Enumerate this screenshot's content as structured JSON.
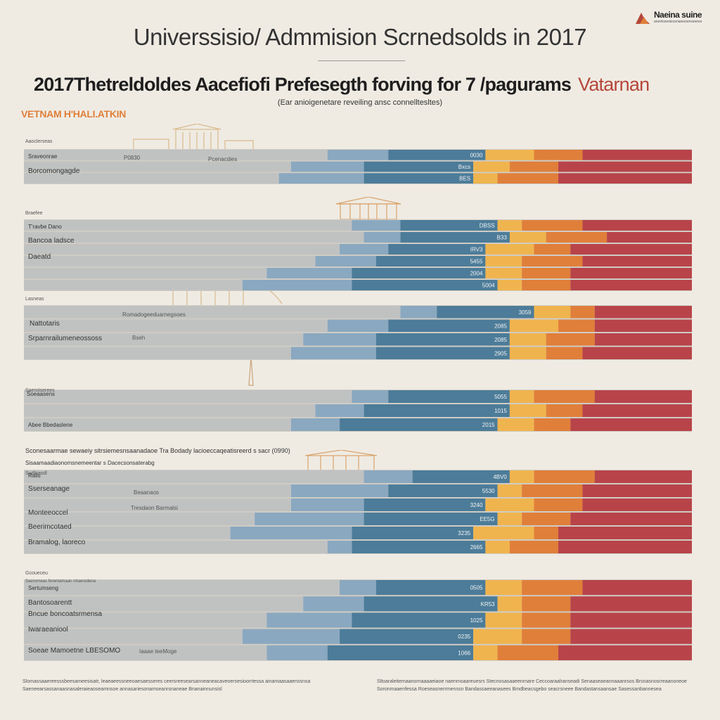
{
  "header": {
    "title": "Universsisio/ Admmision Scrnedsolds in 2017",
    "subtitle": "2017Thetreldoldes Aacefiofi Prefesegth forving for 7 /pagurams",
    "subtitle_accent": "Vatarnan",
    "subnote": "(Ear anioigenetare reveiling ansc connelltesltes)",
    "brand_strip": "VETNAM  H'HALI.ATKIN"
  },
  "logo": {
    "name": "Naeina suine",
    "tagline": "aneelosestessnaneesinsioesre"
  },
  "colors": {
    "page_bg": "#efebe3",
    "light_grey": "#cfccc5",
    "grey": "#b4b9bf",
    "light_blue": "#8aa8c0",
    "blue": "#4c7c99",
    "deep_blue": "#3c6a86",
    "amber": "#f0b44e",
    "orange": "#e07f3a",
    "red": "#b8444a"
  },
  "chart_data": [
    {
      "type": "bar",
      "stacked": true,
      "orientation": "horizontal",
      "title": "Aaoclerseas",
      "segments": [
        "grey",
        "light blue",
        "blue",
        "amber",
        "orange",
        "red"
      ],
      "rows": [
        {
          "label": "Sraveonrae",
          "values": [
            50,
            10,
            16,
            8,
            8,
            18
          ],
          "value_label": "0030"
        },
        {
          "label": "Borcomongagde",
          "values": [
            44,
            12,
            18,
            6,
            8,
            22
          ],
          "value_label": "Bxcs"
        },
        {
          "label": "",
          "values": [
            42,
            14,
            18,
            4,
            10,
            22
          ],
          "value_label": "BES"
        }
      ]
    },
    {
      "type": "bar",
      "stacked": true,
      "orientation": "horizontal",
      "title": "Braefee",
      "segments": [
        "grey",
        "light blue",
        "blue",
        "amber",
        "orange",
        "red"
      ],
      "rows": [
        {
          "label": "T'ravbe Dano",
          "values": [
            54,
            8,
            16,
            4,
            10,
            18
          ],
          "value_label": "DBSS"
        },
        {
          "label": "Bancoa ladsce",
          "values": [
            56,
            6,
            18,
            6,
            10,
            14
          ],
          "value_label": "B33"
        },
        {
          "label": "Daeatd",
          "values": [
            52,
            8,
            16,
            8,
            6,
            20
          ],
          "value_label": "IRV3"
        },
        {
          "label": "",
          "values": [
            48,
            10,
            18,
            6,
            10,
            18
          ],
          "value_label": "5455"
        },
        {
          "label": "",
          "values": [
            40,
            14,
            22,
            6,
            8,
            20
          ],
          "value_label": "2004"
        },
        {
          "label": "",
          "values": [
            36,
            18,
            24,
            4,
            8,
            20
          ],
          "value_label": "5004"
        }
      ]
    },
    {
      "type": "bar",
      "stacked": true,
      "orientation": "horizontal",
      "title": "Lasneas",
      "segments": [
        "grey",
        "light blue",
        "blue",
        "amber",
        "orange",
        "red"
      ],
      "rows": [
        {
          "label": "Nattotaris",
          "values": [
            62,
            6,
            16,
            6,
            4,
            16
          ],
          "value_label": "3059"
        },
        {
          "label": "Srparnrailumeneossoss",
          "values": [
            50,
            10,
            20,
            8,
            6,
            16
          ],
          "value_label": "2085"
        },
        {
          "label": "",
          "values": [
            46,
            12,
            22,
            6,
            8,
            16
          ],
          "value_label": "2085"
        },
        {
          "label": "",
          "values": [
            44,
            14,
            22,
            6,
            6,
            18
          ],
          "value_label": "2905"
        }
      ]
    },
    {
      "type": "bar",
      "stacked": true,
      "orientation": "horizontal",
      "title": "Saerotserees",
      "segments": [
        "grey",
        "light blue",
        "blue",
        "amber",
        "orange",
        "red"
      ],
      "rows": [
        {
          "label": "Soeaasens",
          "values": [
            54,
            6,
            20,
            4,
            10,
            16
          ],
          "value_label": "5055"
        },
        {
          "label": "",
          "values": [
            48,
            8,
            24,
            6,
            6,
            18
          ],
          "value_label": "1015"
        },
        {
          "label": "Abee Bbedaslene",
          "values": [
            44,
            8,
            26,
            6,
            6,
            20
          ],
          "value_label": "2015"
        }
      ]
    },
    {
      "type": "bar",
      "stacked": true,
      "orientation": "horizontal",
      "title": "Sudbiasdl",
      "segments": [
        "grey",
        "light blue",
        "blue",
        "amber",
        "orange",
        "red"
      ],
      "rows": [
        {
          "label": "Ralis",
          "values": [
            56,
            8,
            16,
            4,
            10,
            16
          ],
          "value_label": "4BV0"
        },
        {
          "label": "Sserseanage",
          "values": [
            44,
            16,
            18,
            4,
            10,
            18
          ],
          "value_label": "5530"
        },
        {
          "label": "",
          "values": [
            44,
            12,
            20,
            8,
            8,
            18
          ],
          "value_label": "3240"
        },
        {
          "label": "Monteeoccel",
          "values": [
            38,
            18,
            22,
            4,
            8,
            20
          ],
          "value_label": "EE5G"
        },
        {
          "label": "Beerimcotaed",
          "values": [
            34,
            20,
            20,
            10,
            4,
            22
          ],
          "value_label": "3235"
        },
        {
          "label": "Bramalog, laoreco",
          "values": [
            50,
            4,
            22,
            4,
            8,
            22
          ],
          "value_label": "2665"
        }
      ]
    },
    {
      "type": "bar",
      "stacked": true,
      "orientation": "horizontal",
      "title": "Gcoueceu",
      "segments": [
        "grey",
        "light blue",
        "blue",
        "amber",
        "orange",
        "red"
      ],
      "rows": [
        {
          "label": "Sertumseng",
          "values": [
            52,
            6,
            18,
            6,
            10,
            18
          ],
          "value_label": "0505"
        },
        {
          "label": "Bantosoarentt",
          "values": [
            46,
            10,
            22,
            4,
            8,
            20
          ],
          "value_label": "KR53"
        },
        {
          "label": "Bncue boncoatsrmensa",
          "values": [
            40,
            14,
            22,
            6,
            8,
            20
          ],
          "value_label": "1025"
        },
        {
          "label": "Iwaraeaniool",
          "values": [
            36,
            16,
            22,
            8,
            8,
            20
          ],
          "value_label": "0235"
        },
        {
          "label": "Soeae Mamoetne LBESOMO",
          "values": [
            40,
            10,
            24,
            4,
            10,
            22
          ],
          "value_label": "1066"
        }
      ]
    }
  ],
  "annotations": {
    "sec1_mid": "P0830",
    "sec1_mid2": "Pcenacdies",
    "sec3_mid": "Romadogeeduarnegsoes",
    "sec3_mid2": "Bseh",
    "sec5_note1": "Sconesaarmae sewaeiy sitrsiemesnsaanadaoe Tra Bodady lacioeccaqeatisreerd s sacr (0990)",
    "sec5_note2": "Sisaamaadiaonomsnemeentar s Dacecsonsaterabg",
    "sec5_mid": "Beaanaos",
    "sec5_mid2": "Tresdaon Barmalsi",
    "sec6_small": "Saerorneas ferentamaan mtaeredena",
    "sec6_mid": "Iaaae teeMoge"
  },
  "footer": {
    "left": "Slomassaaereesssbeesameesisatr, leaeaeessneeoaesaesseres ceersreesearsanneaneacaveoersesioorrtessa ainamaasaaenssnsa Saeneearsassanaasnasaleraieaoseamnsoe annasariesonamseanrsnaneae Bnanainnunsisl",
    "right": "Sltoaraleitemaanornaaaaeiaoe naenmoaareuesrs Stecnosasaaeenrnare Ceccoaraalranseadi Senaaseaeannaaanrsos Brsnasnosrreaanoneoe Soronmaaenfessa Roeseasnerrmenssn Bandassaeeanasees Bmdbeacsgebo seacrsneee Bandastansaansae Sasessanbannesea"
  }
}
